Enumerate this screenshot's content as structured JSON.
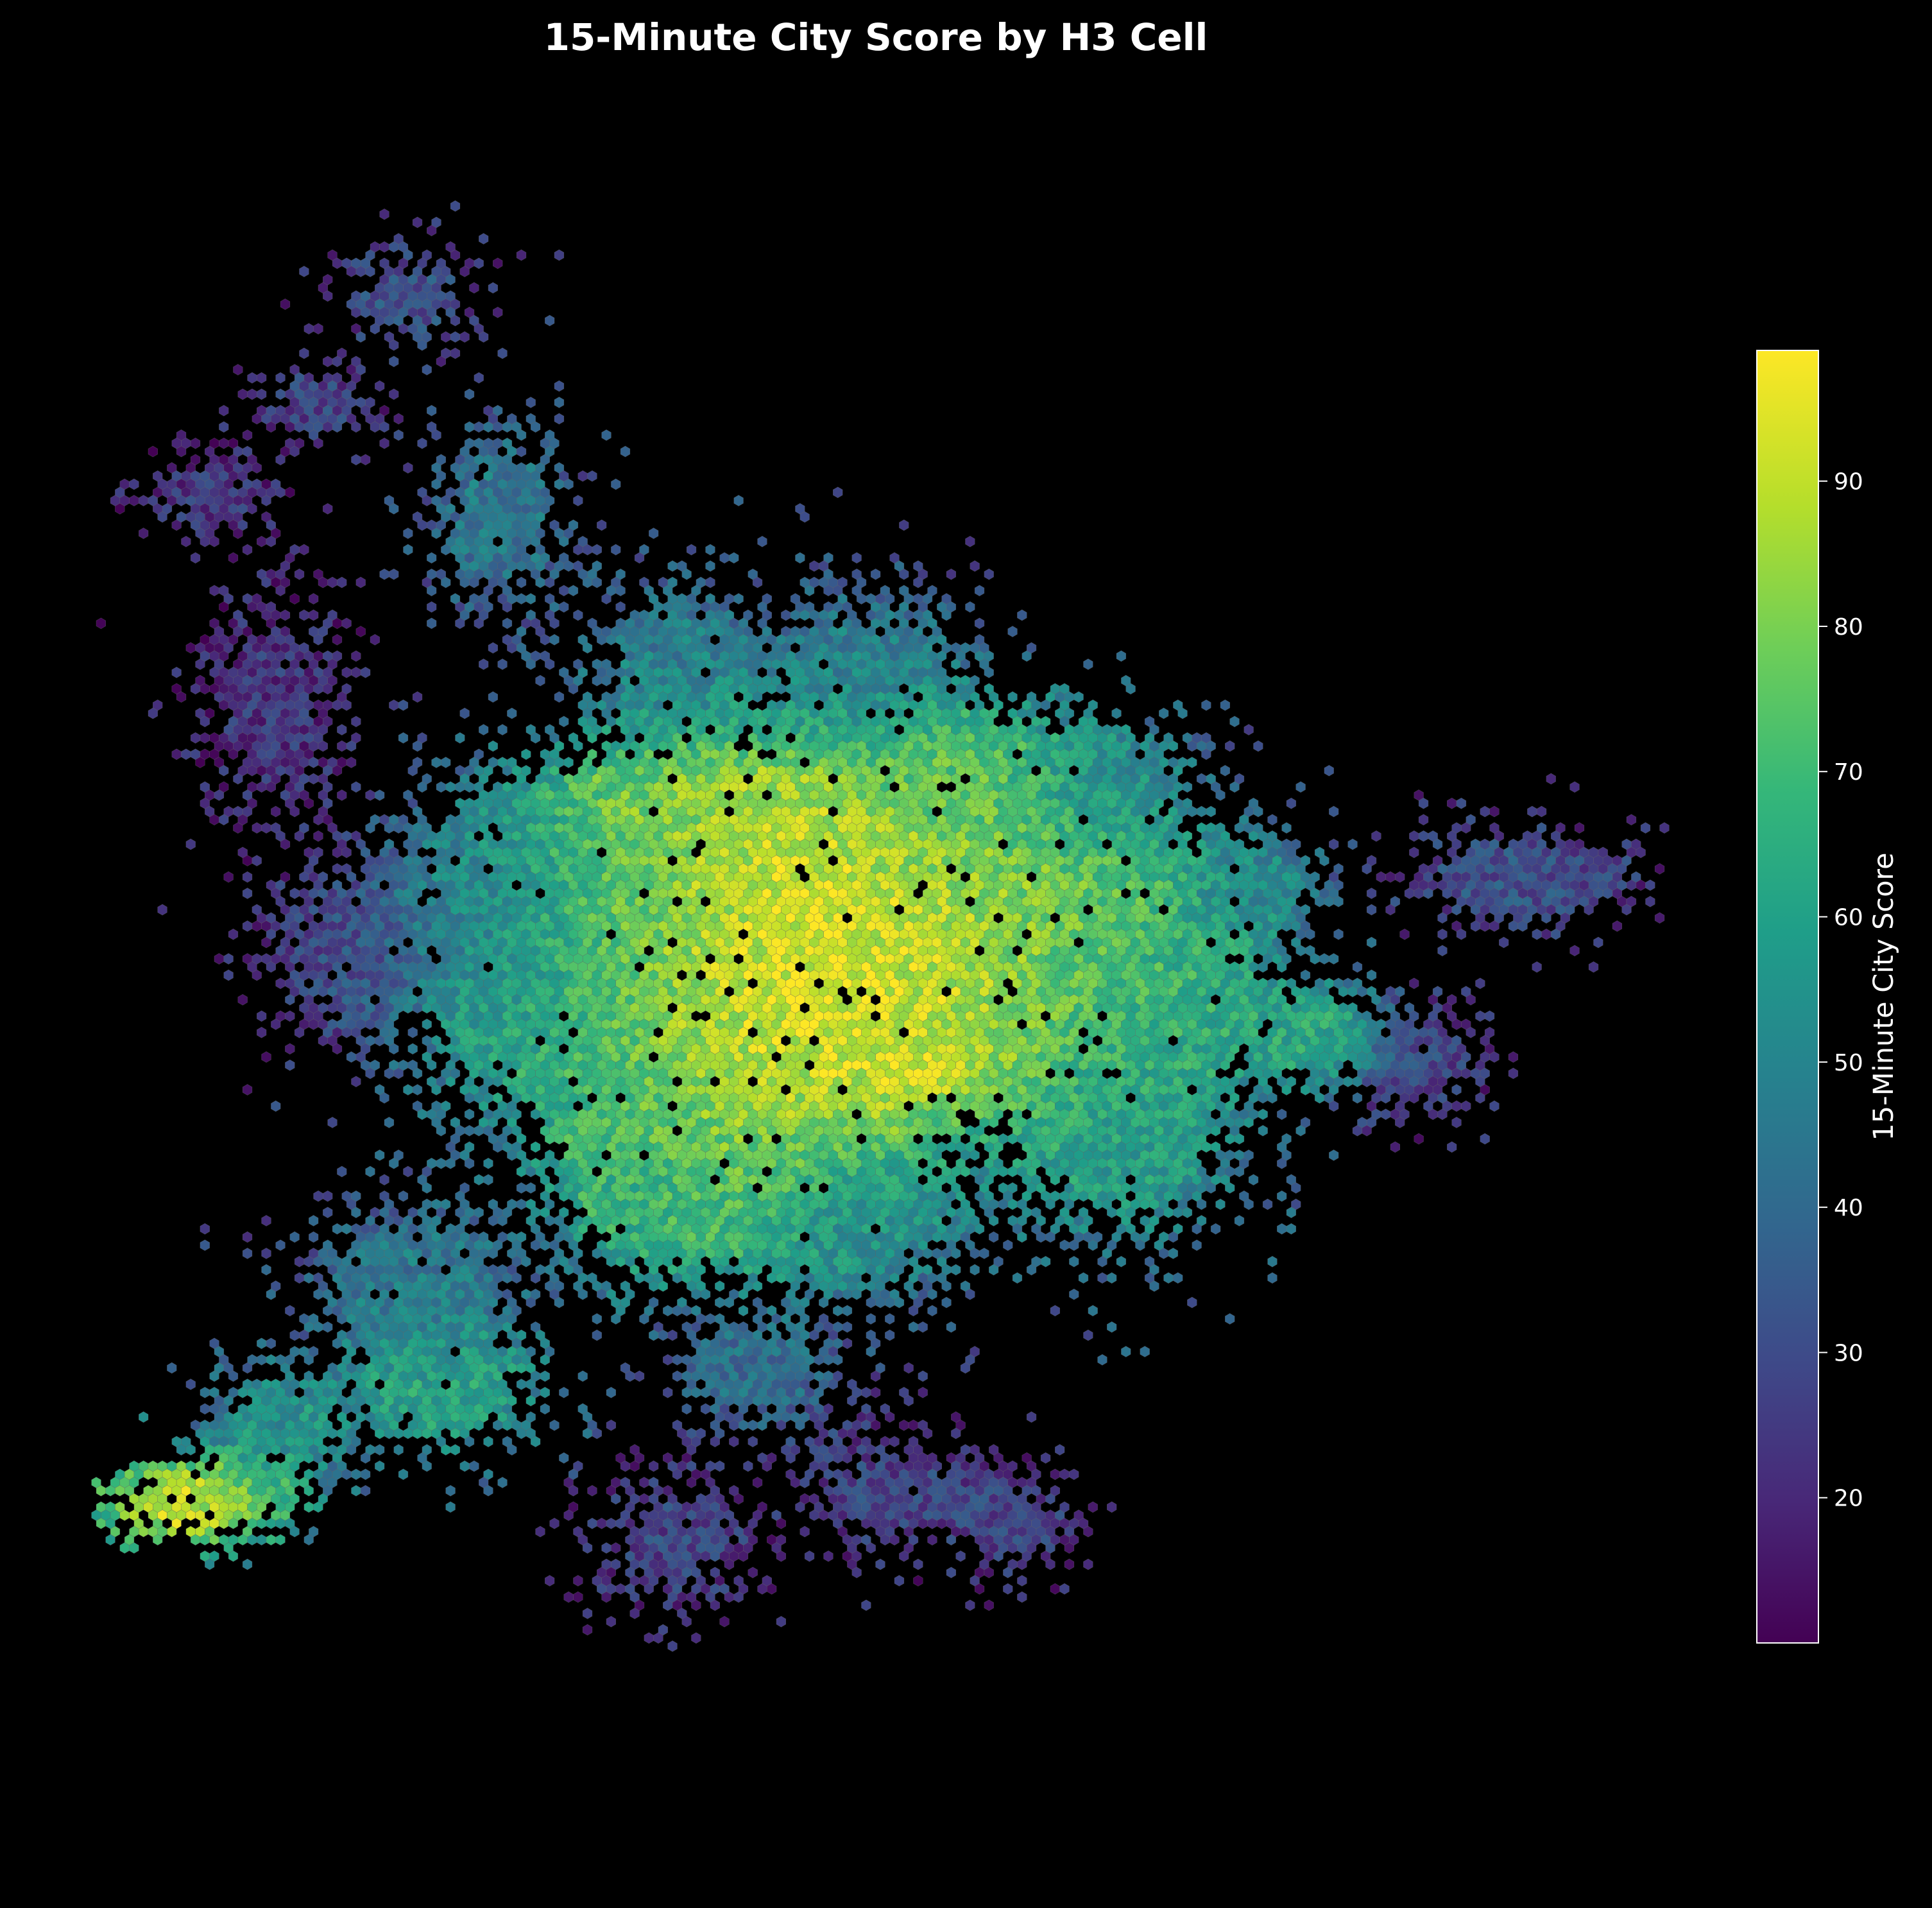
{
  "figure": {
    "title": "15-Minute City Score by H3 Cell",
    "background": "#000000",
    "text_color": "#ffffff"
  },
  "map": {
    "cell_type": "hexagon",
    "colormap": "viridis",
    "cell_edge_color": "#6b6b6b",
    "score_range": [
      10,
      99
    ]
  },
  "colorbar": {
    "label": "15-Minute City Score",
    "min": 10,
    "max": 99,
    "ticks": [
      20,
      30,
      40,
      50,
      60,
      70,
      80,
      90
    ],
    "tick_labels": [
      "20",
      "30",
      "40",
      "50",
      "60",
      "70",
      "80",
      "90"
    ],
    "frame_color": "#ffffff"
  },
  "palette": {
    "viridis": [
      "#440154",
      "#482878",
      "#3e4a89",
      "#31688e",
      "#26828e",
      "#1f9e89",
      "#35b779",
      "#6ece58",
      "#b5de2b",
      "#fde725"
    ]
  }
}
